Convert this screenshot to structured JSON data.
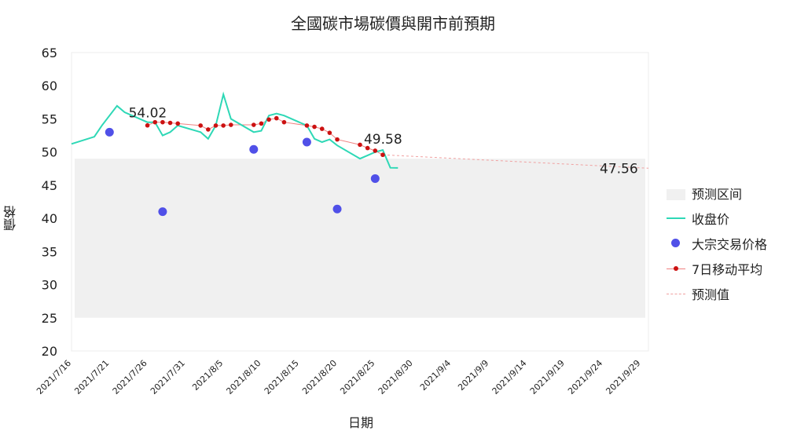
{
  "chart_data": {
    "type": "line",
    "title": "全國碳市場碳價與開市前預期",
    "xlabel": "日期",
    "ylabel": "價格",
    "ylim": [
      20,
      65
    ],
    "yticks": [
      20,
      25,
      30,
      35,
      40,
      45,
      50,
      55,
      60,
      65
    ],
    "xlim": [
      "2021-07-16",
      "2021-09-30"
    ],
    "xtick_labels": [
      "2021/7/16",
      "2021/7/21",
      "2021/7/26",
      "2021/7/31",
      "2021/8/5",
      "2021/8/10",
      "2021/8/15",
      "2021/8/20",
      "2021/8/25",
      "2021/8/30",
      "2021/9/4",
      "2021/9/9",
      "2021/9/14",
      "2021/9/19",
      "2021/9/24",
      "2021/9/29"
    ],
    "grid": false,
    "legend_position": "right",
    "series": [
      {
        "name": "预测区间",
        "kind": "band",
        "color": "#f0f0f0",
        "x_start": "2021-07-16",
        "x_end": "2021-09-30",
        "low": 25,
        "high": 49
      },
      {
        "name": "收盘价",
        "kind": "line",
        "color": "#2ed8b6",
        "points": [
          [
            "2021-07-16",
            51.23
          ],
          [
            "2021-07-19",
            52.3
          ],
          [
            "2021-07-20",
            54.0
          ],
          [
            "2021-07-22",
            56.97
          ],
          [
            "2021-07-23",
            56.0
          ],
          [
            "2021-07-26",
            54.5
          ],
          [
            "2021-07-27",
            54.5
          ],
          [
            "2021-07-28",
            52.5
          ],
          [
            "2021-07-29",
            53.0
          ],
          [
            "2021-07-30",
            54.0
          ],
          [
            "2021-08-02",
            53.0
          ],
          [
            "2021-08-03",
            52.0
          ],
          [
            "2021-08-04",
            54.0
          ],
          [
            "2021-08-05",
            58.7
          ],
          [
            "2021-08-06",
            55.0
          ],
          [
            "2021-08-09",
            53.0
          ],
          [
            "2021-08-10",
            53.2
          ],
          [
            "2021-08-11",
            55.5
          ],
          [
            "2021-08-12",
            55.8
          ],
          [
            "2021-08-13",
            55.5
          ],
          [
            "2021-08-16",
            54.0
          ],
          [
            "2021-08-17",
            52.0
          ],
          [
            "2021-08-18",
            51.5
          ],
          [
            "2021-08-19",
            51.9
          ],
          [
            "2021-08-20",
            51.0
          ],
          [
            "2021-08-23",
            49.0
          ],
          [
            "2021-08-24",
            49.5
          ],
          [
            "2021-08-25",
            50.0
          ],
          [
            "2021-08-26",
            50.3
          ],
          [
            "2021-08-27",
            47.63
          ],
          [
            "2021-08-28",
            47.6
          ]
        ]
      },
      {
        "name": "大宗交易价格",
        "kind": "scatter",
        "color": "#5050e8",
        "points": [
          [
            "2021-07-21",
            53.0
          ],
          [
            "2021-07-28",
            41.0
          ],
          [
            "2021-08-09",
            50.4
          ],
          [
            "2021-08-16",
            51.5
          ],
          [
            "2021-08-20",
            41.4
          ],
          [
            "2021-08-25",
            46.0
          ]
        ]
      },
      {
        "name": "7日移动平均",
        "kind": "line-markers",
        "color": "#cc1111",
        "points": [
          [
            "2021-07-26",
            54.02
          ],
          [
            "2021-07-27",
            54.5
          ],
          [
            "2021-07-28",
            54.5
          ],
          [
            "2021-07-29",
            54.4
          ],
          [
            "2021-07-30",
            54.3
          ],
          [
            "2021-08-02",
            54.0
          ],
          [
            "2021-08-03",
            53.4
          ],
          [
            "2021-08-04",
            54.0
          ],
          [
            "2021-08-05",
            54.0
          ],
          [
            "2021-08-06",
            54.1
          ],
          [
            "2021-08-09",
            54.1
          ],
          [
            "2021-08-10",
            54.3
          ],
          [
            "2021-08-11",
            54.9
          ],
          [
            "2021-08-12",
            55.1
          ],
          [
            "2021-08-13",
            54.5
          ],
          [
            "2021-08-16",
            54.0
          ],
          [
            "2021-08-17",
            53.8
          ],
          [
            "2021-08-18",
            53.5
          ],
          [
            "2021-08-19",
            52.9
          ],
          [
            "2021-08-20",
            51.9
          ],
          [
            "2021-08-23",
            51.1
          ],
          [
            "2021-08-24",
            50.6
          ],
          [
            "2021-08-25",
            50.2
          ],
          [
            "2021-08-26",
            49.58
          ]
        ]
      },
      {
        "name": "预测值",
        "kind": "dashed-line",
        "color": "#f0a0a0",
        "points": [
          [
            "2021-08-26",
            49.58
          ],
          [
            "2021-09-30",
            47.56
          ]
        ]
      }
    ],
    "annotations": [
      {
        "text": "54.02",
        "x": "2021-07-26",
        "y": 54.02
      },
      {
        "text": "49.58",
        "x": "2021-08-26",
        "y": 49.58
      },
      {
        "text": "47.56",
        "x": "2021-09-30",
        "y": 47.56
      }
    ]
  }
}
